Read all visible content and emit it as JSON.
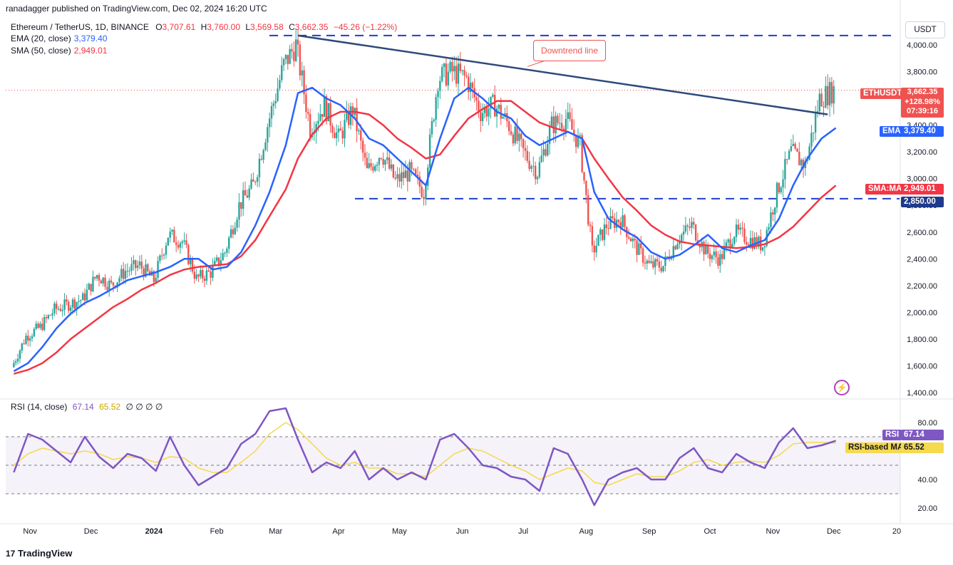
{
  "header": {
    "publisher": "ranadagger published on TradingView.com, Dec 02, 2024 16:20 UTC",
    "symbol_line": "Ethereum / TetherUS, 1D, BINANCE",
    "ohlc": {
      "o_label": "O",
      "o_value": "3,707.61",
      "h_label": "H",
      "h_value": "3,760.00",
      "l_label": "L",
      "l_value": "3,569.58",
      "c_label": "C",
      "c_value": "3,662.35",
      "change": "−45.26 (−1.22%)"
    },
    "ema_label": "EMA (20, close)",
    "ema_value": "3,379.40",
    "sma_label": "SMA (50, close)",
    "sma_value": "2,949.01",
    "rsi_label": "RSI (14, close)",
    "rsi_value": "67.14",
    "rsi_ma_value": "65.52",
    "rsi_extra": "∅ ∅ ∅ ∅"
  },
  "currency_button": "USDT",
  "annotation": "Downtrend line",
  "price_tags": {
    "symbol": "ETHUSDT",
    "last": "3,662.35",
    "change": "+128.98%",
    "countdown": "07:39:16",
    "ema_label": "EMA",
    "ema": "3,379.40",
    "sma_label": "SMA:MA",
    "sma": "2,949.01",
    "support": "2,850.00",
    "rsi_label": "RSI",
    "rsi": "67.14",
    "rsi_ma_label": "RSI-based MA",
    "rsi_ma": "65.52"
  },
  "footer_logo": "TradingView",
  "colors": {
    "up": "#26a69a",
    "down": "#ef5350",
    "ema": "#2962ff",
    "sma": "#f23645",
    "trend": "#2d4a7a",
    "rsi": "#7e57c2",
    "rsi_ma": "#f5d94e",
    "support": "#1e3ec9"
  },
  "chart_data": [
    {
      "type": "candlestick",
      "title": "Ethereum / TetherUS, 1D, BINANCE",
      "y_ticks": [
        "4,000.00",
        "3,800.00",
        "3,600.00",
        "3,400.00",
        "3,200.00",
        "3,000.00",
        "2,800.00",
        "2,600.00",
        "2,400.00",
        "2,200.00",
        "2,000.00",
        "1,800.00",
        "1,600.00",
        "1,400.00"
      ],
      "y_tick_values": [
        4000,
        3800,
        3600,
        3400,
        3200,
        3000,
        2800,
        2600,
        2400,
        2200,
        2000,
        1800,
        1600,
        1400
      ],
      "x_ticks": [
        "Nov",
        "Dec",
        "2024",
        "Feb",
        "Mar",
        "Apr",
        "May",
        "Jun",
        "Jul",
        "Aug",
        "Sep",
        "Oct",
        "Nov",
        "Dec",
        "20"
      ],
      "x_tick_dates": [
        "2023-11-01",
        "2023-12-01",
        "2024-01-01",
        "2024-02-01",
        "2024-03-01",
        "2024-04-01",
        "2024-05-01",
        "2024-06-01",
        "2024-07-01",
        "2024-08-01",
        "2024-09-01",
        "2024-10-01",
        "2024-11-01",
        "2024-12-01",
        "2025-01-01"
      ],
      "ylim": [
        1400,
        4080
      ],
      "close_series_weekly": [
        {
          "date": "2023-10-24",
          "c": 1590
        },
        {
          "date": "2023-10-31",
          "c": 1820
        },
        {
          "date": "2023-11-07",
          "c": 1890
        },
        {
          "date": "2023-11-14",
          "c": 2020
        },
        {
          "date": "2023-11-21",
          "c": 2060
        },
        {
          "date": "2023-11-28",
          "c": 2100
        },
        {
          "date": "2023-12-05",
          "c": 2280
        },
        {
          "date": "2023-12-12",
          "c": 2200
        },
        {
          "date": "2023-12-19",
          "c": 2310
        },
        {
          "date": "2023-12-26",
          "c": 2350
        },
        {
          "date": "2024-01-02",
          "c": 2240
        },
        {
          "date": "2024-01-09",
          "c": 2580
        },
        {
          "date": "2024-01-16",
          "c": 2530
        },
        {
          "date": "2024-01-23",
          "c": 2250
        },
        {
          "date": "2024-01-30",
          "c": 2300
        },
        {
          "date": "2024-02-06",
          "c": 2450
        },
        {
          "date": "2024-02-13",
          "c": 2800
        },
        {
          "date": "2024-02-20",
          "c": 2950
        },
        {
          "date": "2024-02-27",
          "c": 3400
        },
        {
          "date": "2024-03-06",
          "c": 3850
        },
        {
          "date": "2024-03-12",
          "c": 4000
        },
        {
          "date": "2024-03-19",
          "c": 3380
        },
        {
          "date": "2024-03-26",
          "c": 3550
        },
        {
          "date": "2024-04-02",
          "c": 3300
        },
        {
          "date": "2024-04-09",
          "c": 3520
        },
        {
          "date": "2024-04-16",
          "c": 3050
        },
        {
          "date": "2024-04-23",
          "c": 3200
        },
        {
          "date": "2024-04-30",
          "c": 2980
        },
        {
          "date": "2024-05-07",
          "c": 3050
        },
        {
          "date": "2024-05-14",
          "c": 2900
        },
        {
          "date": "2024-05-21",
          "c": 3750
        },
        {
          "date": "2024-05-28",
          "c": 3800
        },
        {
          "date": "2024-06-04",
          "c": 3750
        },
        {
          "date": "2024-06-11",
          "c": 3500
        },
        {
          "date": "2024-06-18",
          "c": 3550
        },
        {
          "date": "2024-06-25",
          "c": 3400
        },
        {
          "date": "2024-07-02",
          "c": 3200
        },
        {
          "date": "2024-07-09",
          "c": 3050
        },
        {
          "date": "2024-07-16",
          "c": 3400
        },
        {
          "date": "2024-07-23",
          "c": 3450
        },
        {
          "date": "2024-07-30",
          "c": 3250
        },
        {
          "date": "2024-08-05",
          "c": 2450
        },
        {
          "date": "2024-08-12",
          "c": 2650
        },
        {
          "date": "2024-08-19",
          "c": 2700
        },
        {
          "date": "2024-08-26",
          "c": 2500
        },
        {
          "date": "2024-09-02",
          "c": 2350
        },
        {
          "date": "2024-09-09",
          "c": 2350
        },
        {
          "date": "2024-09-16",
          "c": 2550
        },
        {
          "date": "2024-09-23",
          "c": 2650
        },
        {
          "date": "2024-09-30",
          "c": 2450
        },
        {
          "date": "2024-10-07",
          "c": 2400
        },
        {
          "date": "2024-10-14",
          "c": 2600
        },
        {
          "date": "2024-10-21",
          "c": 2550
        },
        {
          "date": "2024-10-28",
          "c": 2500
        },
        {
          "date": "2024-11-04",
          "c": 2900
        },
        {
          "date": "2024-11-11",
          "c": 3200
        },
        {
          "date": "2024-11-18",
          "c": 3100
        },
        {
          "date": "2024-11-25",
          "c": 3600
        },
        {
          "date": "2024-12-02",
          "c": 3662
        }
      ],
      "ema20_weekly": [
        1560,
        1620,
        1740,
        1880,
        1990,
        2070,
        2120,
        2180,
        2240,
        2270,
        2300,
        2340,
        2400,
        2400,
        2320,
        2340,
        2450,
        2650,
        2900,
        3250,
        3640,
        3680,
        3600,
        3550,
        3450,
        3300,
        3250,
        3150,
        3050,
        2950,
        3300,
        3600,
        3680,
        3600,
        3500,
        3450,
        3320,
        3250,
        3300,
        3350,
        3300,
        2900,
        2700,
        2620,
        2560,
        2450,
        2400,
        2430,
        2500,
        2580,
        2480,
        2450,
        2500,
        2540,
        2700,
        2950,
        3150,
        3300,
        3379
      ],
      "sma50_weekly": [
        1540,
        1570,
        1620,
        1700,
        1800,
        1880,
        1960,
        2040,
        2100,
        2170,
        2220,
        2280,
        2320,
        2340,
        2350,
        2360,
        2420,
        2540,
        2720,
        2920,
        3150,
        3330,
        3450,
        3500,
        3500,
        3480,
        3400,
        3300,
        3230,
        3150,
        3180,
        3320,
        3450,
        3520,
        3580,
        3580,
        3500,
        3420,
        3380,
        3350,
        3300,
        3150,
        3000,
        2860,
        2760,
        2650,
        2580,
        2530,
        2510,
        2500,
        2490,
        2480,
        2490,
        2510,
        2560,
        2640,
        2750,
        2860,
        2949
      ],
      "support": 2850,
      "trendline": [
        {
          "date": "2024-03-12",
          "y": 4070
        },
        {
          "date": "2024-11-28",
          "y": 3480
        }
      ],
      "resistance": 4070
    },
    {
      "type": "line",
      "title": "RSI (14, close)",
      "ylim": [
        15,
        90
      ],
      "y_ticks": [
        "80.00",
        "40.00",
        "20.00"
      ],
      "y_tick_values": [
        80,
        40,
        20
      ],
      "bands": [
        70,
        50,
        30
      ],
      "rsi_weekly": [
        45,
        72,
        68,
        60,
        52,
        70,
        56,
        48,
        58,
        55,
        46,
        70,
        50,
        36,
        42,
        48,
        65,
        72,
        88,
        90,
        68,
        45,
        52,
        48,
        60,
        40,
        48,
        40,
        45,
        40,
        68,
        72,
        62,
        50,
        48,
        42,
        40,
        32,
        62,
        58,
        40,
        22,
        40,
        45,
        48,
        40,
        40,
        55,
        62,
        48,
        45,
        58,
        52,
        48,
        66,
        76,
        62,
        64,
        67.14
      ],
      "rsi_ma_weekly": [
        50,
        58,
        62,
        60,
        58,
        60,
        58,
        54,
        56,
        55,
        52,
        56,
        55,
        48,
        45,
        45,
        52,
        60,
        72,
        80,
        75,
        65,
        55,
        50,
        52,
        48,
        48,
        44,
        44,
        42,
        50,
        58,
        62,
        60,
        55,
        50,
        46,
        40,
        44,
        48,
        46,
        38,
        36,
        40,
        44,
        42,
        42,
        46,
        52,
        54,
        50,
        52,
        53,
        52,
        57,
        65,
        66,
        66,
        65.52
      ]
    }
  ]
}
